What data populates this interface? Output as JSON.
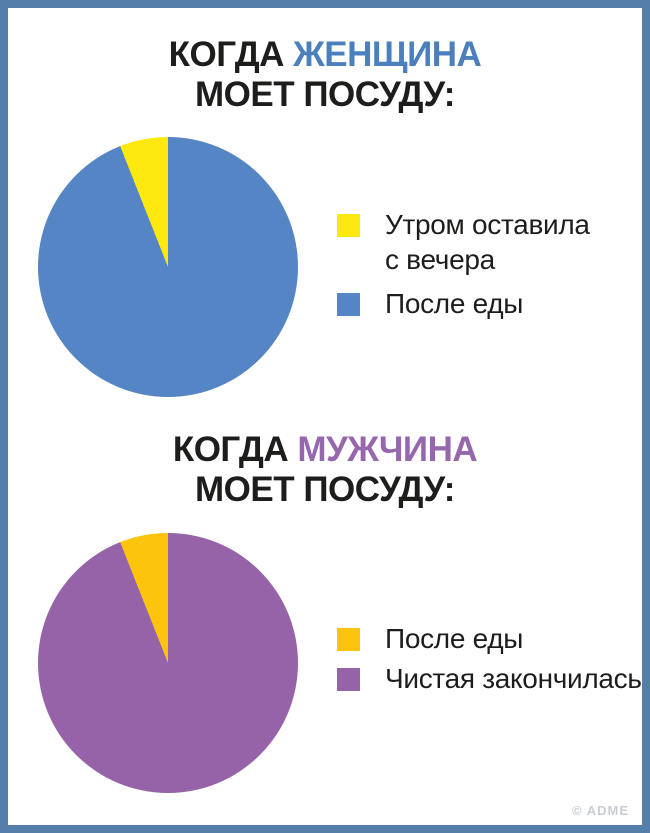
{
  "page": {
    "frame_color": "#567eab",
    "background_color": "#ffffff",
    "watermark": "© ADME",
    "watermark_color": "#c9ced4"
  },
  "chart_data": [
    {
      "type": "pie",
      "title": "КОГДА ЖЕНЩИНА МОЕТ ПОСУДУ:",
      "title_parts": {
        "prefix": "КОГДА ",
        "highlight": "ЖЕНЩИНА",
        "highlight_color": "#4b80bc",
        "line2": "МОЕТ ПОСУДУ:"
      },
      "labels": [
        "Утром оставила с вечера",
        "После еды"
      ],
      "values_pct": [
        6,
        94
      ],
      "colors": [
        "#fde90e",
        "#5585c4"
      ],
      "rotation_deg": -21.6,
      "legend_position": "right",
      "legend_lines": [
        [
          "Утром оставила",
          "с вечера"
        ],
        [
          "После еды"
        ]
      ]
    },
    {
      "type": "pie",
      "title": "КОГДА МУЖЧИНА МОЕТ ПОСУДУ:",
      "title_parts": {
        "prefix": "КОГДА ",
        "highlight": "МУЖЧИНА",
        "highlight_color": "#9667ad",
        "line2": "МОЕТ ПОСУДУ:"
      },
      "labels": [
        "После еды",
        "Чистая закончилась"
      ],
      "values_pct": [
        6,
        94
      ],
      "colors": [
        "#fcc40d",
        "#9663a8"
      ],
      "rotation_deg": -21.6,
      "legend_position": "right",
      "legend_lines": [
        [
          "После еды"
        ],
        [
          "Чистая закончилась"
        ]
      ]
    }
  ]
}
